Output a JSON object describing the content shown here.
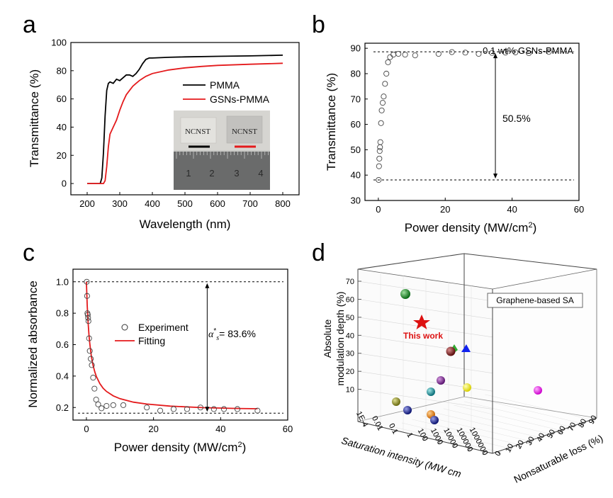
{
  "panel_labels": [
    "a",
    "b",
    "c",
    "d"
  ],
  "chart_data": [
    {
      "panel": "a",
      "type": "line",
      "xlabel": "Wavelength (nm)",
      "ylabel": "Transmittance (%)",
      "xlim": [
        150,
        850
      ],
      "ylim": [
        -8,
        100
      ],
      "xticks": [
        200,
        300,
        400,
        500,
        600,
        700,
        800
      ],
      "yticks": [
        0,
        20,
        40,
        60,
        80,
        100
      ],
      "legend_position": "right",
      "series": [
        {
          "name": "PMMA",
          "color": "#000000",
          "x": [
            200,
            240,
            245,
            250,
            255,
            260,
            265,
            270,
            280,
            290,
            300,
            310,
            320,
            330,
            340,
            350,
            360,
            370,
            380,
            390,
            400,
            450,
            500,
            600,
            700,
            800
          ],
          "y": [
            0,
            0,
            4,
            22,
            48,
            66,
            71,
            72,
            71,
            74,
            73,
            75,
            77,
            77,
            76,
            78,
            81,
            85,
            88,
            89,
            89,
            89.5,
            89.8,
            90.2,
            90.5,
            91
          ]
        },
        {
          "name": "GSNs-PMMA",
          "color": "#e41a1c",
          "x": [
            200,
            250,
            255,
            260,
            265,
            270,
            280,
            290,
            300,
            310,
            320,
            330,
            340,
            350,
            360,
            370,
            380,
            390,
            400,
            450,
            500,
            550,
            600,
            700,
            800
          ],
          "y": [
            0,
            0,
            2,
            12,
            26,
            35,
            40,
            45,
            52,
            58,
            63,
            66,
            69,
            71,
            73,
            74.5,
            76,
            77,
            78,
            80.5,
            82,
            83,
            83.8,
            84.6,
            85.3
          ]
        }
      ],
      "inset": {
        "sample_labels": [
          "NCNST",
          "NCNST"
        ],
        "ruler_labels": [
          "1",
          "2",
          "3",
          "4"
        ]
      }
    },
    {
      "panel": "b",
      "type": "scatter",
      "xlabel": "Power density (MW/cm",
      "xlabel_sup": "2",
      "xlabel_end": ")",
      "ylabel": "Transmittance (%)",
      "xlim": [
        -4,
        60
      ],
      "ylim": [
        30,
        92
      ],
      "xticks": [
        0,
        20,
        40,
        60
      ],
      "yticks": [
        30,
        40,
        50,
        60,
        70,
        80,
        90
      ],
      "annotations": [
        "0.1 wt% GSNs-PMMA",
        "50.5%"
      ],
      "reference_lines": [
        88.6,
        38.1
      ],
      "x": [
        0.1,
        0.2,
        0.3,
        0.4,
        0.5,
        0.6,
        0.8,
        1.0,
        1.3,
        1.6,
        2.0,
        2.4,
        2.9,
        3.5,
        4.5,
        6.0,
        8.0,
        11,
        18,
        22,
        26,
        30,
        34,
        38,
        41,
        45,
        51
      ],
      "y": [
        38.1,
        43.5,
        46.5,
        49.5,
        51,
        53,
        60.5,
        65.5,
        68.5,
        71,
        76,
        80,
        84.5,
        86.5,
        87.5,
        87.8,
        87.5,
        87.2,
        87.8,
        88.5,
        88.3,
        87.8,
        88.2,
        88.3,
        88.4,
        88.1,
        88.6
      ]
    },
    {
      "panel": "c",
      "type": "scatter",
      "xlabel": "Power density (MW/cm",
      "xlabel_sup": "2",
      "xlabel_end": ")",
      "ylabel": "Normalized absorbance",
      "xlim": [
        -4,
        60
      ],
      "ylim": [
        0.12,
        1.08
      ],
      "xticks": [
        0,
        20,
        40,
        60
      ],
      "yticks": [
        0.2,
        0.4,
        0.6,
        0.8,
        1.0
      ],
      "legend_position": "center",
      "legend": [
        "Experiment",
        "Fitting"
      ],
      "annotation": "= 83.6%",
      "reference_lines": [
        1.0,
        0.164
      ],
      "series": [
        {
          "name": "Experiment",
          "x": [
            0.1,
            0.2,
            0.3,
            0.4,
            0.5,
            0.6,
            0.8,
            1.0,
            1.3,
            1.6,
            2.0,
            2.4,
            2.9,
            3.5,
            4.5,
            6.0,
            8.0,
            11,
            18,
            22,
            26,
            30,
            34,
            38,
            41,
            45,
            51
          ],
          "y": [
            1.0,
            0.91,
            0.8,
            0.79,
            0.77,
            0.75,
            0.64,
            0.56,
            0.51,
            0.47,
            0.39,
            0.32,
            0.25,
            0.22,
            0.195,
            0.21,
            0.215,
            0.215,
            0.2,
            0.18,
            0.19,
            0.19,
            0.2,
            0.19,
            0.19,
            0.19,
            0.18
          ]
        },
        {
          "name": "Fitting",
          "color": "#e41a1c",
          "model": "y = 0.174 + 0.826/(1+x/1.1)",
          "x": [
            0,
            0.25,
            0.5,
            0.75,
            1,
            1.5,
            2,
            2.5,
            3,
            4,
            5,
            6,
            8,
            10,
            14,
            18,
            25,
            35,
            45,
            51
          ],
          "y": [
            1.0,
            0.847,
            0.742,
            0.665,
            0.607,
            0.523,
            0.467,
            0.426,
            0.396,
            0.352,
            0.322,
            0.302,
            0.274,
            0.256,
            0.234,
            0.222,
            0.209,
            0.199,
            0.194,
            0.192
          ]
        }
      ]
    },
    {
      "panel": "d",
      "type": "scatter",
      "xlabel": "Saturation intensity (MW cm",
      "ylabel_line1": "Absolute",
      "ylabel_line2": "modulation depth (%)",
      "zlabel": "Nonsaturable loss (%)",
      "yticks": [
        10,
        20,
        30,
        40,
        50,
        60,
        70
      ],
      "x_ticklabels": [
        "1E-4",
        "0.01",
        "0.1",
        "1",
        "100",
        "1000",
        "10000",
        "100000",
        "1000000"
      ],
      "z_ticklabels": [
        "0",
        "10",
        "20",
        "30",
        "40",
        "50",
        "60",
        "70",
        "80",
        "90"
      ],
      "legend": "Graphene-based SA",
      "highlight_label": "This work",
      "highlight_color": "#dd1111"
    }
  ]
}
